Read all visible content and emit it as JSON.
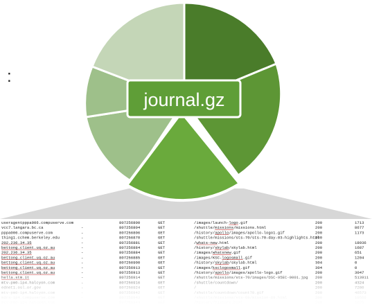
{
  "badge": {
    "label": "journal.gz"
  },
  "side_mark": ":",
  "colors": {
    "segments": [
      "#4a7c2a",
      "#5d9635",
      "#6aaa3c",
      "#9ec08a",
      "#b7d0a5",
      "#c4d6b7"
    ],
    "selected": "#6aaa3c",
    "badge_fill": "#5f9e37",
    "badge_stroke": "#ffffff",
    "fan": "#d7d7d7",
    "link": "#c03030",
    "text": "#222222"
  },
  "log_rows": [
    [
      "useragentpppa006.compuserve.com",
      "",
      "807256800",
      "GET",
      "/images/launch-logo.gif",
      "200",
      "1713"
    ],
    [
      "vcc7.langara.bc.ca",
      "-",
      "807256804",
      "GET",
      "/shuttle/missions/missions.html",
      "200",
      "8677"
    ],
    [
      "pppa006.compuserve.com",
      "-",
      "807256806",
      "GET",
      "/history/apollo/images/apollo-logo1.gif",
      "200",
      "1173"
    ],
    [
      "thing1.cchem.berkeley.edu",
      "-",
      "807256870",
      "GET",
      "/shuttle/missions/sts-70/sts-70-day-03-highlights.html",
      "200",
      ""
    ],
    [
      "202.236.34.35",
      "-",
      "807256881",
      "GET",
      "/whats-new.html",
      "200",
      "18936"
    ],
    [
      "bettong.client.uq.oz.au",
      "-",
      "807256884",
      "GET",
      "/history/skylab/skylab.html",
      "200",
      "1687"
    ],
    [
      "202.236.34.35",
      "-",
      "807256884",
      "GET",
      "/images/whatsnew.gif",
      "200",
      "651"
    ],
    [
      "bettong.client.uq.oz.au",
      "-",
      "807256885",
      "GET",
      "/images/KSC-logosmall.gif",
      "200",
      "1204"
    ],
    [
      "bettong.client.uq.oz.au",
      "-",
      "807256900",
      "GET",
      "/history/skylab/skylab.html",
      "304",
      "0"
    ],
    [
      "bettong.client.uq.oz.au",
      "-",
      "807256913",
      "GET",
      "/images/ksclogosmall.gif",
      "304",
      "0"
    ],
    [
      "bettong.client.uq.oz.au",
      "-",
      "807256913",
      "GET",
      "/history/apollo/images/apollo-logo.gif",
      "200",
      "3047"
    ],
    [
      "hella.stm.it",
      "-",
      "807256914",
      "GET",
      "/shuttle/missions/sts-70/images/DSC-95EC-0001.jpg",
      "200",
      "513911"
    ],
    [
      "mtv-pm0-ip4.halcyon.com",
      "-",
      "807256916",
      "GET",
      "/shuttle/countdown/",
      "200",
      "4324"
    ],
    [
      "ednet1.osl.or.gov",
      "-",
      "807256924",
      "GET",
      "/",
      "200",
      "7280"
    ],
    [
      "mtv-pm0-ip4.halcyon.com",
      "-",
      "807256942",
      "GET",
      "/shuttle/countdown/count70.gif",
      "200",
      "46573"
    ],
    [
      "mdrs-ip4.compuserve.com",
      "-",
      "807256943",
      "GET",
      "/shuttle/missions/sts-69/mission-69.html",
      "200",
      "10566"
    ],
    [
      "mtv-pm0-ip4.halcyon.com",
      "-",
      "807256944",
      "GET",
      "/history/history.html",
      "200",
      "1680"
    ]
  ],
  "underlined": [
    [
      0,
      "logo"
    ],
    [
      1,
      "missions"
    ],
    [
      2,
      "apollo"
    ],
    [
      4,
      "whats-new"
    ],
    [
      5,
      "skylab"
    ],
    [
      6,
      "whatsnew"
    ],
    [
      7,
      "logosmall"
    ],
    [
      8,
      "skylab"
    ],
    [
      9,
      "ksclogosmall"
    ],
    [
      10,
      "apollo"
    ]
  ]
}
